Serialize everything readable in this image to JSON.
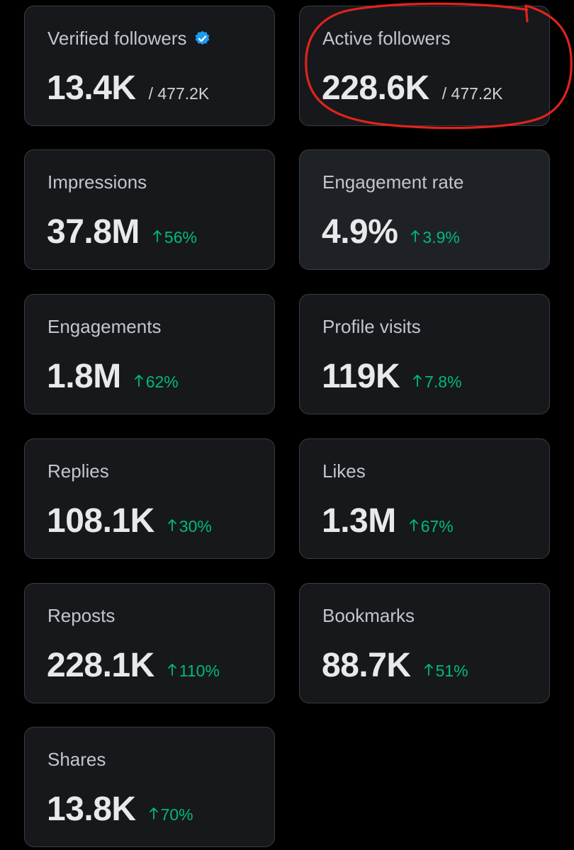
{
  "accent": {
    "up": "#00ba7c",
    "verified": "#1d9bf0",
    "annotation": "#e0231d"
  },
  "icons": {
    "verified": "verified-badge-icon",
    "up": "arrow-up-icon"
  },
  "cards": {
    "verified_followers": {
      "label": "Verified followers",
      "value": "13.4K",
      "total": "/ 477.2K"
    },
    "active_followers": {
      "label": "Active followers",
      "value": "228.6K",
      "total": "/ 477.2K"
    },
    "impressions": {
      "label": "Impressions",
      "value": "37.8M",
      "change": "56%"
    },
    "engagement_rate": {
      "label": "Engagement rate",
      "value": "4.9%",
      "change": "3.9%"
    },
    "engagements": {
      "label": "Engagements",
      "value": "1.8M",
      "change": "62%"
    },
    "profile_visits": {
      "label": "Profile visits",
      "value": "119K",
      "change": "7.8%"
    },
    "replies": {
      "label": "Replies",
      "value": "108.1K",
      "change": "30%"
    },
    "likes": {
      "label": "Likes",
      "value": "1.3M",
      "change": "67%"
    },
    "reposts": {
      "label": "Reposts",
      "value": "228.1K",
      "change": "110%"
    },
    "bookmarks": {
      "label": "Bookmarks",
      "value": "88.7K",
      "change": "51%"
    },
    "shares": {
      "label": "Shares",
      "value": "13.8K",
      "change": "70%"
    }
  }
}
